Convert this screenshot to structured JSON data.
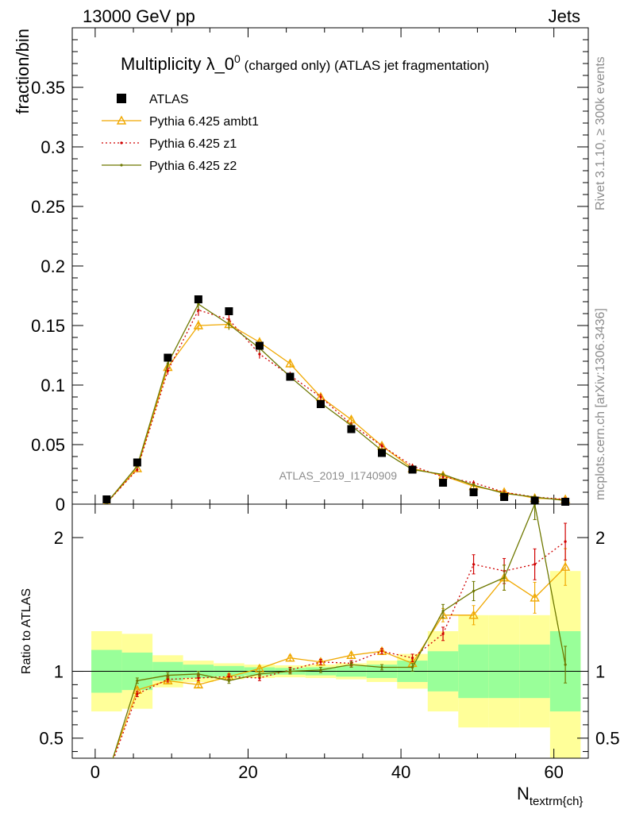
{
  "header": {
    "left": "13000 GeV pp",
    "right": "Jets"
  },
  "side": {
    "rivet": "Rivet 3.1.10, ≥ 300k events",
    "mcplots": "mcplots.cern.ch [arXiv:1306.3436]"
  },
  "chart_data": {
    "type": "scatter",
    "title": "Multiplicity λ_0",
    "title_sup": "0",
    "title_suffix": " (charged only) (ATLAS jet fragmentation)",
    "analysis_label": "ATLAS_2019_I1740909",
    "xlabel": "N",
    "xlabel_sub": "textrm{ch}",
    "ylabel": "fraction/bin",
    "ratio_ylabel": "Ratio to ATLAS",
    "xlim": [
      -3,
      64.5
    ],
    "ylim": [
      0,
      0.4
    ],
    "ratio_ylim": [
      0.35,
      2.25
    ],
    "x_ticks": [
      "0",
      "20",
      "40",
      "60"
    ],
    "y_ticks": [
      "0",
      "0.05",
      "0.1",
      "0.15",
      "0.2",
      "0.25",
      "0.3",
      "0.35"
    ],
    "ratio_ticks": [
      "0.5",
      "1",
      "2"
    ],
    "legend_position": "top-left",
    "x": [
      1.5,
      5.5,
      9.5,
      13.5,
      17.5,
      21.5,
      25.5,
      29.5,
      33.5,
      37.5,
      41.5,
      45.5,
      49.5,
      53.5,
      57.5,
      61.5
    ],
    "data": {
      "name": "ATLAS",
      "values": [
        0.004,
        0.035,
        0.123,
        0.172,
        0.162,
        0.133,
        0.107,
        0.084,
        0.063,
        0.043,
        0.029,
        0.018,
        0.01,
        0.006,
        0.003,
        0.002
      ],
      "band_inner": [
        0.16,
        0.14,
        0.07,
        0.05,
        0.04,
        0.03,
        0.025,
        0.03,
        0.04,
        0.05,
        0.08,
        0.15,
        0.2,
        0.2,
        0.2,
        0.3
      ],
      "band_outer": [
        0.3,
        0.28,
        0.12,
        0.08,
        0.06,
        0.05,
        0.045,
        0.05,
        0.06,
        0.08,
        0.13,
        0.3,
        0.42,
        0.42,
        0.42,
        0.75
      ]
    },
    "series": [
      {
        "name": "Pythia 6.425 ambt1",
        "color": "#f0a800",
        "marker": "triangle",
        "dash": "solid",
        "values": [
          0.001,
          0.03,
          0.115,
          0.15,
          0.151,
          0.136,
          0.118,
          0.09,
          0.071,
          0.049,
          0.03,
          0.024,
          0.015,
          0.01,
          0.005,
          0.004
        ],
        "ratio": [
          0.22,
          0.86,
          0.93,
          0.9,
          0.96,
          1.02,
          1.1,
          1.07,
          1.12,
          1.15,
          1.06,
          1.42,
          1.42,
          1.7,
          1.55,
          1.78
        ]
      },
      {
        "name": "Pythia 6.425 z1",
        "color": "#d00000",
        "marker": "dot",
        "dash": "dotted",
        "values": [
          0.001,
          0.029,
          0.112,
          0.163,
          0.155,
          0.126,
          0.108,
          0.09,
          0.067,
          0.049,
          0.032,
          0.023,
          0.018,
          0.01,
          0.006,
          0.004
        ],
        "ratio": [
          0.2,
          0.83,
          0.94,
          0.95,
          0.96,
          0.95,
          1.01,
          1.07,
          1.06,
          1.15,
          1.1,
          1.28,
          1.8,
          1.75,
          1.8,
          1.97
        ]
      },
      {
        "name": "Pythia 6.425 z2",
        "color": "#6e7800",
        "marker": "dot",
        "dash": "solid",
        "values": [
          0.001,
          0.032,
          0.118,
          0.168,
          0.151,
          0.131,
          0.107,
          0.085,
          0.066,
          0.045,
          0.029,
          0.025,
          0.016,
          0.009,
          0.006,
          0.003
        ],
        "ratio": [
          0.2,
          0.93,
          0.97,
          0.98,
          0.93,
          0.98,
          1.0,
          1.01,
          1.05,
          1.03,
          1.03,
          1.45,
          1.6,
          1.7,
          2.25,
          1.05
        ]
      }
    ]
  }
}
